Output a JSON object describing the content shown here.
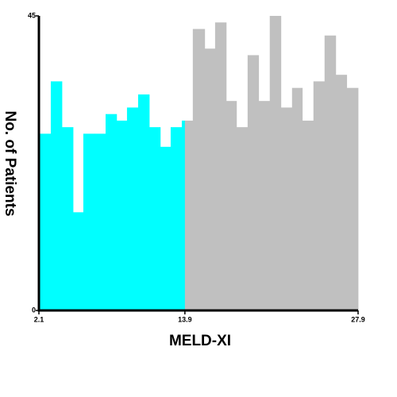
{
  "chart_data": {
    "type": "histogram",
    "x_label": "MELD-XI",
    "y_label": "No. of Patients",
    "xlim": [
      2.1,
      27.9
    ],
    "xticks": [
      2.1,
      13.9,
      27.9
    ],
    "ylim": [
      0,
      45
    ],
    "yticks": [
      0,
      45
    ],
    "series": [
      {
        "color": "#00ffff",
        "bins": [
          2.1,
          3.06,
          3.96,
          4.86,
          5.69,
          6.59,
          7.49,
          8.38,
          9.22,
          10.12,
          11.02,
          11.91,
          12.75,
          13.65,
          13.9
        ],
        "values": [
          27,
          35,
          28,
          15,
          27,
          27,
          30,
          29,
          31,
          33,
          28,
          25,
          28,
          29
        ]
      },
      {
        "color": "#c0c0c0",
        "bins": [
          13.9,
          14.54,
          15.5,
          16.34,
          17.24,
          18.07,
          18.97,
          19.86,
          20.76,
          21.66,
          22.56,
          23.39,
          24.29,
          25.19,
          26.09,
          26.98,
          27.9
        ],
        "values": [
          29,
          43,
          40,
          44,
          32,
          28,
          39,
          32,
          45,
          31,
          34,
          29,
          35,
          42,
          36,
          34
        ]
      }
    ]
  }
}
